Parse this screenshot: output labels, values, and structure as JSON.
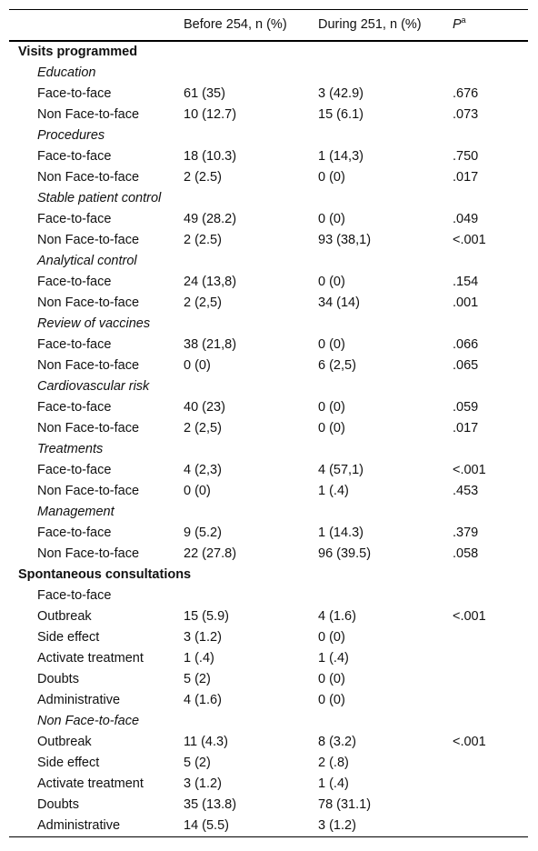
{
  "header": {
    "col1": "",
    "col2": "Before 254, n (%)",
    "col3": "During 251, n (%)",
    "col4_main": "P",
    "col4_sup": "a"
  },
  "sections": [
    {
      "title": "Visits programmed",
      "groups": [
        {
          "label": "Education",
          "italic": true,
          "rows": [
            {
              "label": "Face-to-face",
              "before": "61 (35)",
              "during": "3 (42.9)",
              "p": ".676"
            },
            {
              "label": "Non Face-to-face",
              "before": "10 (12.7)",
              "during": "15 (6.1)",
              "p": ".073"
            }
          ]
        },
        {
          "label": "Procedures",
          "italic": true,
          "rows": [
            {
              "label": "Face-to-face",
              "before": "18 (10.3)",
              "during": "1 (14,3)",
              "p": ".750"
            },
            {
              "label": "Non Face-to-face",
              "before": "2 (2.5)",
              "during": "0 (0)",
              "p": ".017"
            }
          ]
        },
        {
          "label": "Stable patient control",
          "italic": true,
          "rows": [
            {
              "label": "Face-to-face",
              "before": "49 (28.2)",
              "during": "0 (0)",
              "p": ".049"
            },
            {
              "label": "Non Face-to-face",
              "before": "2 (2.5)",
              "during": "93 (38,1)",
              "p": "<.001"
            }
          ]
        },
        {
          "label": "Analytical control",
          "italic": true,
          "rows": [
            {
              "label": "Face-to-face",
              "before": "24 (13,8)",
              "during": "0 (0)",
              "p": ".154"
            },
            {
              "label": "Non Face-to-face",
              "before": "2 (2,5)",
              "during": "34 (14)",
              "p": ".001"
            }
          ]
        },
        {
          "label": "Review of vaccines",
          "italic": true,
          "rows": [
            {
              "label": "Face-to-face",
              "before": "38 (21,8)",
              "during": "0 (0)",
              "p": ".066"
            },
            {
              "label": "Non Face-to-face",
              "before": "0 (0)",
              "during": "6 (2,5)",
              "p": ".065"
            }
          ]
        },
        {
          "label": "Cardiovascular risk",
          "italic": true,
          "rows": [
            {
              "label": "Face-to-face",
              "before": "40 (23)",
              "during": "0 (0)",
              "p": ".059"
            },
            {
              "label": "Non Face-to-face",
              "before": "2 (2,5)",
              "during": "0 (0)",
              "p": ".017"
            }
          ]
        },
        {
          "label": "Treatments",
          "italic": true,
          "rows": [
            {
              "label": "Face-to-face",
              "before": "4 (2,3)",
              "during": "4 (57,1)",
              "p": "<.001"
            },
            {
              "label": "Non Face-to-face",
              "before": "0 (0)",
              "during": "1 (.4)",
              "p": ".453"
            }
          ]
        },
        {
          "label": "Management",
          "italic": true,
          "rows": [
            {
              "label": "Face-to-face",
              "before": "9 (5.2)",
              "during": "1 (14.3)",
              "p": ".379"
            },
            {
              "label": "Non Face-to-face",
              "before": "22 (27.8)",
              "during": "96 (39.5)",
              "p": ".058"
            }
          ]
        }
      ]
    },
    {
      "title": "Spontaneous consultations",
      "groups": [
        {
          "label": "Face-to-face",
          "italic": false,
          "rows": [
            {
              "label": "Outbreak",
              "before": "15 (5.9)",
              "during": "4 (1.6)",
              "p": "<.001"
            },
            {
              "label": "Side effect",
              "before": "3 (1.2)",
              "during": "0 (0)",
              "p": ""
            },
            {
              "label": "Activate treatment",
              "before": "1 (.4)",
              "during": "1 (.4)",
              "p": ""
            },
            {
              "label": "Doubts",
              "before": "5 (2)",
              "during": "0 (0)",
              "p": ""
            },
            {
              "label": "Administrative",
              "before": "4 (1.6)",
              "during": "0 (0)",
              "p": ""
            }
          ]
        },
        {
          "label": "Non Face-to-face",
          "italic": true,
          "rows": [
            {
              "label": "Outbreak",
              "before": "11 (4.3)",
              "during": "8 (3.2)",
              "p": "<.001"
            },
            {
              "label": "Side effect",
              "before": "5 (2)",
              "during": "2 (.8)",
              "p": ""
            },
            {
              "label": "Activate treatment",
              "before": "3 (1.2)",
              "during": "1 (.4)",
              "p": ""
            },
            {
              "label": "Doubts",
              "before": "35 (13.8)",
              "during": "78 (31.1)",
              "p": ""
            },
            {
              "label": "Administrative",
              "before": "14 (5.5)",
              "during": "3 (1.2)",
              "p": ""
            }
          ]
        }
      ]
    }
  ]
}
